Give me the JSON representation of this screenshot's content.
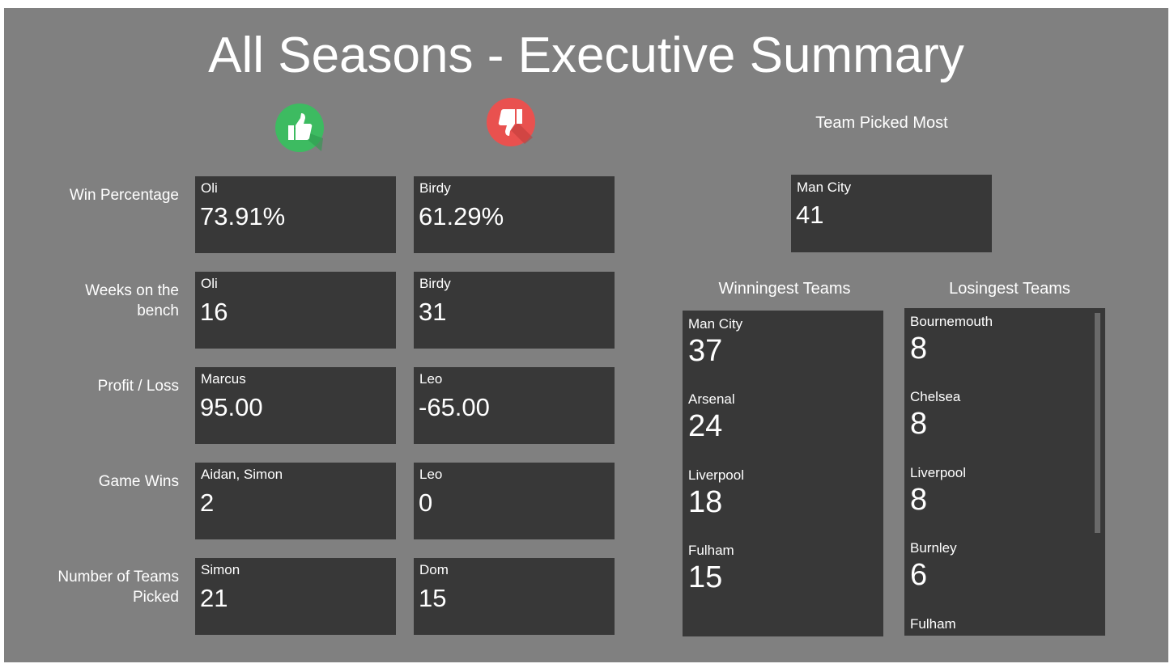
{
  "header": {
    "title": "All Seasons - Executive Summary"
  },
  "icons": {
    "best": "thumbs-up-icon",
    "worst": "thumbs-down-icon",
    "best_color": "#3dbb61",
    "worst_color": "#e9514f"
  },
  "metrics": [
    {
      "label": "Win Percentage",
      "best": {
        "name": "Oli",
        "value": "73.91%"
      },
      "worst": {
        "name": "Birdy",
        "value": "61.29%"
      }
    },
    {
      "label": "Weeks on the bench",
      "best": {
        "name": "Oli",
        "value": "16"
      },
      "worst": {
        "name": "Birdy",
        "value": "31"
      }
    },
    {
      "label": "Profit / Loss",
      "best": {
        "name": "Marcus",
        "value": "95.00"
      },
      "worst": {
        "name": "Leo",
        "value": "-65.00"
      }
    },
    {
      "label": "Game Wins",
      "best": {
        "name": "Aidan, Simon",
        "value": "2"
      },
      "worst": {
        "name": "Leo",
        "value": "0"
      }
    },
    {
      "label": "Number of Teams Picked",
      "best": {
        "name": "Simon",
        "value": "21"
      },
      "worst": {
        "name": "Dom",
        "value": "15"
      }
    }
  ],
  "team_picked_most": {
    "heading": "Team Picked Most",
    "name": "Man City",
    "value": "41"
  },
  "winningest": {
    "heading": "Winningest Teams",
    "teams": [
      {
        "name": "Man City",
        "value": "37"
      },
      {
        "name": "Arsenal",
        "value": "24"
      },
      {
        "name": "Liverpool",
        "value": "18"
      },
      {
        "name": "Fulham",
        "value": "15"
      }
    ]
  },
  "losingest": {
    "heading": "Losingest Teams",
    "teams": [
      {
        "name": "Bournemouth",
        "value": "8"
      },
      {
        "name": "Chelsea",
        "value": "8"
      },
      {
        "name": "Liverpool",
        "value": "8"
      },
      {
        "name": "Burnley",
        "value": "6"
      },
      {
        "name": "Fulham",
        "value": ""
      }
    ]
  }
}
